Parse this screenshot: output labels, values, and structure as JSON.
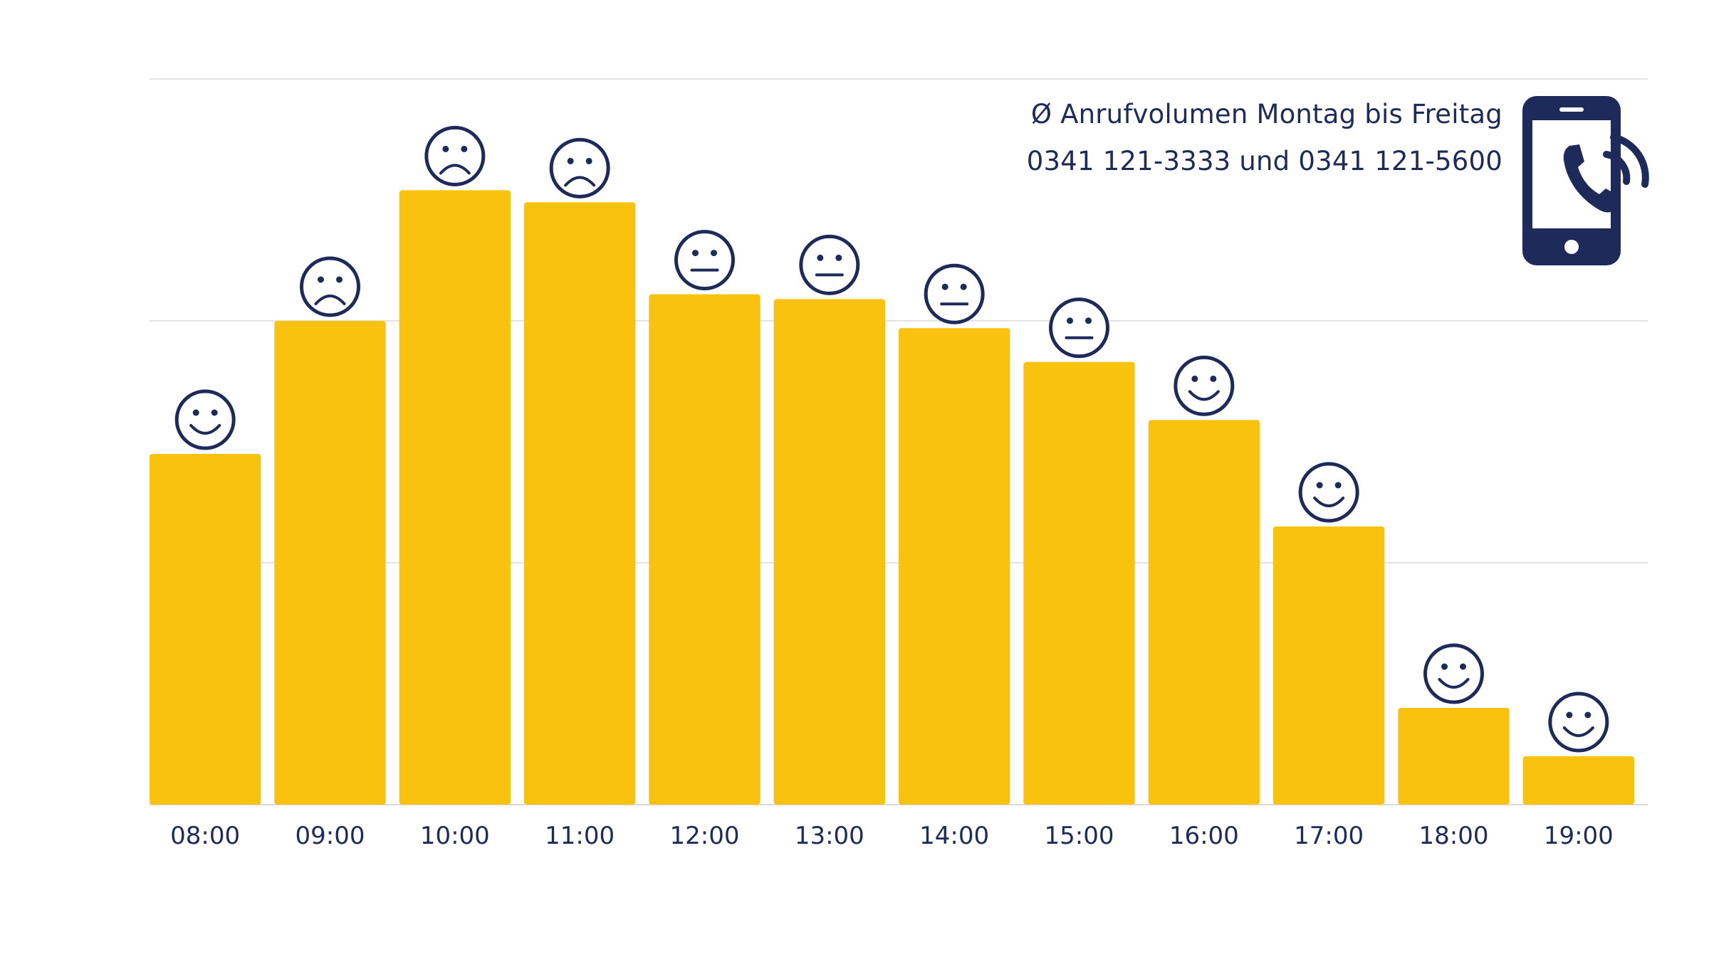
{
  "header": {
    "title": "Ø Anrufvolumen Montag bis Freitag",
    "phone_numbers": "0341 121-3333 und 0341 121-5600"
  },
  "colors": {
    "bar": "#F9C20E",
    "text": "#1E2A5A",
    "icon": "#1E2A5A",
    "grid": "#E3E3E3"
  },
  "chart_data": {
    "type": "bar",
    "title": "Ø Anrufvolumen Montag bis Freitag",
    "subtitle": "0341 121-3333 und 0341 121-5600",
    "xlabel": "",
    "ylabel": "",
    "categories": [
      "08:00",
      "09:00",
      "10:00",
      "11:00",
      "12:00",
      "13:00",
      "14:00",
      "15:00",
      "16:00",
      "17:00",
      "18:00",
      "19:00"
    ],
    "values": [
      72.5,
      100,
      127,
      124.5,
      105.5,
      104.5,
      98.5,
      91.5,
      79.5,
      57.5,
      20,
      10
    ],
    "moods": [
      "happy",
      "sad",
      "sad",
      "sad",
      "neutral",
      "neutral",
      "neutral",
      "neutral",
      "happy",
      "happy",
      "happy",
      "happy"
    ],
    "ylim": [
      0,
      150
    ],
    "grid": true,
    "y_tick_labels_shown": false,
    "legend": "none"
  }
}
